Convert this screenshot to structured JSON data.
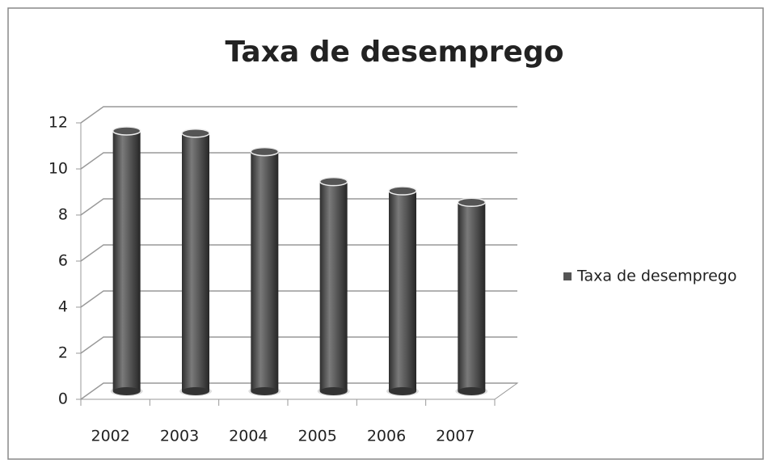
{
  "chart_data": {
    "type": "bar",
    "title": "Taxa de desemprego",
    "categories": [
      "2002",
      "2003",
      "2004",
      "2005",
      "2006",
      "2007"
    ],
    "series": [
      {
        "name": "Taxa de desemprego",
        "color": "#555555",
        "values": [
          11.3,
          11.2,
          10.4,
          9.1,
          8.7,
          8.2
        ]
      }
    ],
    "ylim": [
      0,
      12
    ],
    "yticks": [
      0,
      2,
      4,
      6,
      8,
      10,
      12
    ],
    "grid": true,
    "legend": "right"
  }
}
